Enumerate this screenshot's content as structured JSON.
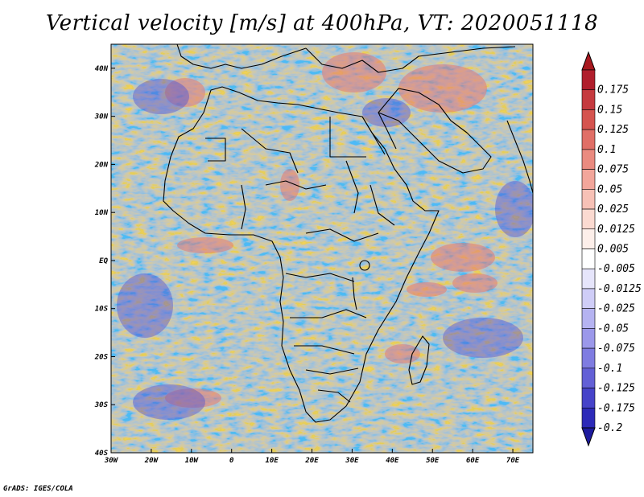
{
  "title": "Vertical velocity [m/s] at 400hPa, VT: 2020051118",
  "credit": "GrADS: IGES/COLA",
  "map": {
    "projection": "lat-lon",
    "lon_range": [
      -30,
      75
    ],
    "lat_range": [
      -40,
      45
    ],
    "lon_ticks": [
      {
        "value": -30,
        "label": "30W"
      },
      {
        "value": -20,
        "label": "20W"
      },
      {
        "value": -10,
        "label": "10W"
      },
      {
        "value": 0,
        "label": "0"
      },
      {
        "value": 10,
        "label": "10E"
      },
      {
        "value": 20,
        "label": "20E"
      },
      {
        "value": 30,
        "label": "30E"
      },
      {
        "value": 40,
        "label": "40E"
      },
      {
        "value": 50,
        "label": "50E"
      },
      {
        "value": 60,
        "label": "60E"
      },
      {
        "value": 70,
        "label": "70E"
      }
    ],
    "lat_ticks": [
      {
        "value": 40,
        "label": "40N"
      },
      {
        "value": 30,
        "label": "30N"
      },
      {
        "value": 20,
        "label": "20N"
      },
      {
        "value": 10,
        "label": "10N"
      },
      {
        "value": 0,
        "label": "EQ"
      },
      {
        "value": -10,
        "label": "10S"
      },
      {
        "value": -20,
        "label": "20S"
      },
      {
        "value": -30,
        "label": "30S"
      },
      {
        "value": -40,
        "label": "40S"
      }
    ]
  },
  "colorbar": {
    "levels": [
      {
        "label": "0.175",
        "color": "#b01e2c"
      },
      {
        "label": "0.15",
        "color": "#c53a3f"
      },
      {
        "label": "0.125",
        "color": "#d5544f"
      },
      {
        "label": "0.1",
        "color": "#e06f67"
      },
      {
        "label": "0.075",
        "color": "#ea8b80"
      },
      {
        "label": "0.05",
        "color": "#f2a69b"
      },
      {
        "label": "0.025",
        "color": "#f7c1b6"
      },
      {
        "label": "0.0125",
        "color": "#fbdad1"
      },
      {
        "label": "0.005",
        "color": "#fdefea"
      },
      {
        "label": "-0.005",
        "color": "#ffffff"
      },
      {
        "label": "-0.0125",
        "color": "#e6e5fb"
      },
      {
        "label": "-0.025",
        "color": "#cfcdf7"
      },
      {
        "label": "-0.05",
        "color": "#b5b3f1"
      },
      {
        "label": "-0.075",
        "color": "#9b98ea"
      },
      {
        "label": "-0.1",
        "color": "#7f7ce1"
      },
      {
        "label": "-0.125",
        "color": "#6360d6"
      },
      {
        "label": "-0.175",
        "color": "#4643c9"
      },
      {
        "label": "-0.2",
        "color": "#2d2ab8"
      }
    ],
    "top_arrow_color": "#a8181f",
    "bottom_arrow_color": "#1d1b9e"
  }
}
